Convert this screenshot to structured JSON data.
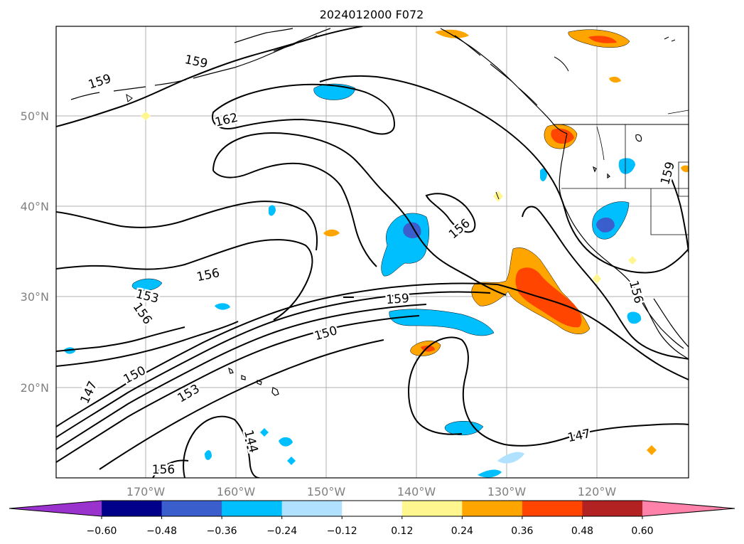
{
  "title": "2024012000 F072",
  "lat_labels": [
    "50°N",
    "40°N",
    "30°N",
    "20°N"
  ],
  "lon_labels": [
    "170°W",
    "160°W",
    "150°W",
    "140°W",
    "130°W",
    "120°W"
  ],
  "colorbar": {
    "colors": [
      "#9a32cd",
      "#00008b",
      "#3a5fcd",
      "#00bfff",
      "#b0e2ff",
      "#ffffff",
      "#fff68f",
      "#ffa500",
      "#ff4500",
      "#b22222",
      "#ff82ab"
    ],
    "tick_labels": [
      "-0.60",
      "-0.48",
      "-0.36",
      "-0.24",
      "-0.12",
      "0.12",
      "0.24",
      "0.36",
      "0.48",
      "0.60"
    ]
  },
  "contour_labels": {
    "c159_nw": "159",
    "c159_top": "159",
    "c162": "162",
    "c159_ne": "159",
    "c156_mid": "156",
    "c156_w": "156",
    "c153_w": "153",
    "c156_sw": "156",
    "c159_c": "159",
    "c150_c": "150",
    "c150_sw": "150",
    "c147_w": "147",
    "c153_s": "153",
    "c144": "144",
    "c156_bot": "156",
    "c156_e": "156",
    "c147_se": "147"
  }
}
